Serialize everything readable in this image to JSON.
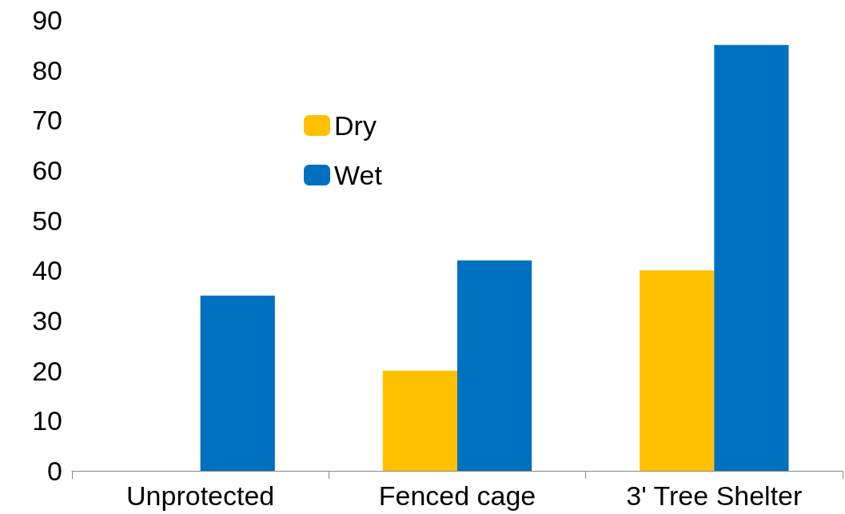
{
  "chart_data": {
    "type": "bar",
    "categories": [
      "Unprotected",
      "Fenced cage",
      "3' Tree Shelter"
    ],
    "series": [
      {
        "name": "Dry",
        "color": "#ffc000",
        "values": [
          0,
          20,
          40
        ]
      },
      {
        "name": "Wet",
        "color": "#0070c0",
        "values": [
          35,
          42,
          85
        ]
      }
    ],
    "ylim": [
      0,
      90
    ],
    "yticks": [
      0,
      10,
      20,
      30,
      40,
      50,
      60,
      70,
      80,
      90
    ],
    "grid": false,
    "legend": "top left"
  }
}
